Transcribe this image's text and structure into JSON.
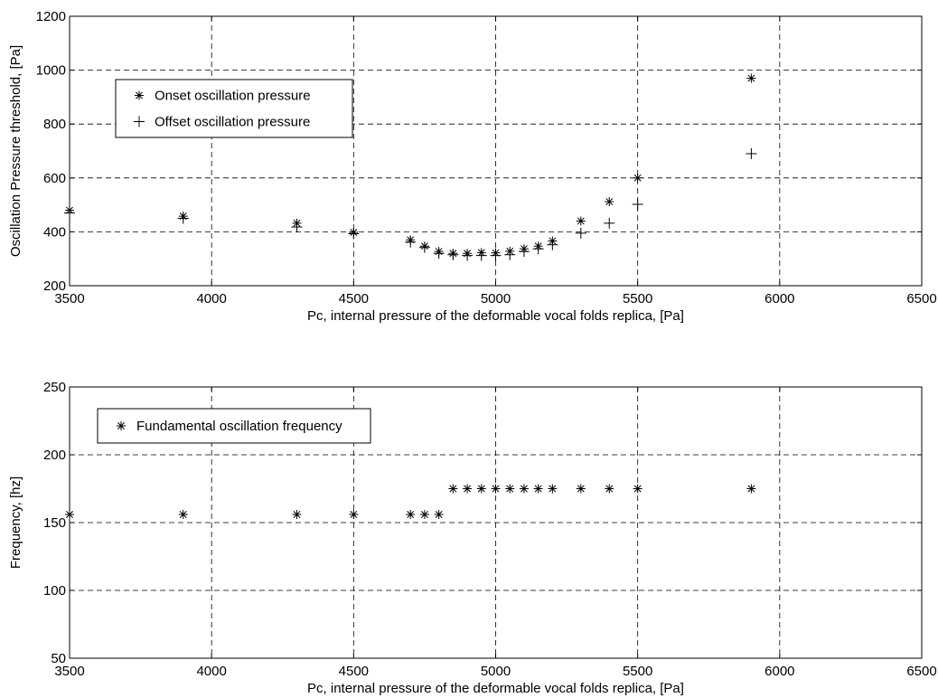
{
  "chart_data": [
    {
      "type": "scatter",
      "title": "",
      "xlabel": "Pc, internal pressure of the deformable vocal folds replica, [Pa]",
      "ylabel": "Oscillation Pressure threshold, [Pa]",
      "xlim": [
        3500,
        6500
      ],
      "ylim": [
        200,
        1200
      ],
      "xticks": [
        "3500",
        "4000",
        "4500",
        "5000",
        "5500",
        "6000",
        "6500"
      ],
      "yticks": [
        "200",
        "400",
        "600",
        "800",
        "1000",
        "1200"
      ],
      "grid": true,
      "legend_position": "upper-left",
      "series": [
        {
          "name": "Onset oscillation pressure",
          "marker": "asterisk",
          "x": [
            3500,
            3900,
            4300,
            4500,
            4700,
            4750,
            4800,
            4850,
            4900,
            4950,
            5000,
            5050,
            5100,
            5150,
            5200,
            5300,
            5400,
            5500,
            5900
          ],
          "y": [
            480,
            458,
            432,
            398,
            370,
            347,
            327,
            320,
            320,
            323,
            322,
            328,
            337,
            347,
            366,
            440,
            512,
            600,
            970
          ]
        },
        {
          "name": "Offset oscillation pressure",
          "marker": "plus",
          "x": [
            3500,
            3900,
            4300,
            4500,
            4700,
            4750,
            4800,
            4850,
            4900,
            4950,
            5000,
            5050,
            5100,
            5150,
            5200,
            5300,
            5400,
            5500,
            5900
          ],
          "y": [
            470,
            450,
            418,
            393,
            362,
            342,
            320,
            315,
            312,
            312,
            312,
            315,
            327,
            337,
            352,
            395,
            432,
            502,
            690
          ]
        }
      ]
    },
    {
      "type": "scatter",
      "title": "",
      "xlabel": "Pc, internal pressure of the deformable vocal folds replica, [Pa]",
      "ylabel": "Frequency, [hz]",
      "xlim": [
        3500,
        6500
      ],
      "ylim": [
        50,
        250
      ],
      "xticks": [
        "3500",
        "4000",
        "4500",
        "5000",
        "5500",
        "6000",
        "6500"
      ],
      "yticks": [
        "50",
        "100",
        "150",
        "200",
        "250"
      ],
      "grid": true,
      "legend_position": "upper-left",
      "series": [
        {
          "name": "Fundamental oscillation frequency",
          "marker": "asterisk",
          "x": [
            3500,
            3900,
            4300,
            4500,
            4700,
            4750,
            4800,
            4850,
            4900,
            4950,
            5000,
            5050,
            5100,
            5150,
            5200,
            5300,
            5400,
            5500,
            5900
          ],
          "y": [
            156,
            156,
            156,
            156,
            156,
            156,
            156,
            175,
            175,
            175,
            175,
            175,
            175,
            175,
            175,
            175,
            175,
            175,
            175
          ]
        }
      ]
    }
  ]
}
